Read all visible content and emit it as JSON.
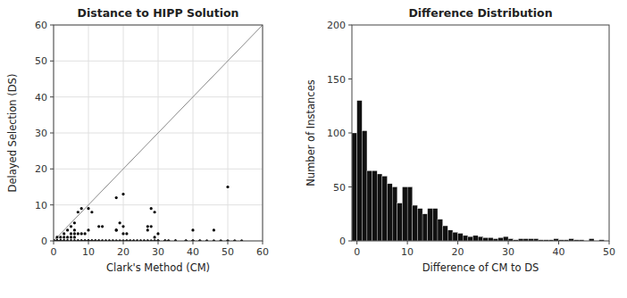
{
  "chart_data": [
    {
      "type": "scatter",
      "title": "Distance to HIPP Solution",
      "x_label": "Clark's Method (CM)",
      "y_label": "Delayed Selection (DS)",
      "x": [
        0,
        0,
        0,
        0,
        0,
        0,
        0,
        0,
        0,
        0,
        1,
        1,
        1,
        1,
        1,
        1,
        1,
        1,
        1,
        2,
        2,
        2,
        2,
        2,
        2,
        2,
        2,
        3,
        3,
        3,
        3,
        3,
        3,
        3,
        3,
        4,
        4,
        4,
        4,
        4,
        4,
        4,
        5,
        5,
        5,
        5,
        5,
        5,
        5,
        5,
        6,
        6,
        6,
        6,
        6,
        6,
        6,
        6,
        7,
        7,
        7,
        7,
        7,
        7,
        8,
        8,
        8,
        8,
        8,
        8,
        9,
        9,
        9,
        9,
        9,
        10,
        10,
        10,
        10,
        10,
        10,
        10,
        11,
        11,
        11,
        11,
        11,
        12,
        12,
        12,
        12,
        13,
        13,
        13,
        13,
        13,
        14,
        14,
        14,
        14,
        15,
        15,
        15,
        16,
        16,
        16,
        17,
        17,
        17,
        18,
        18,
        18,
        18,
        18,
        19,
        19,
        19,
        20,
        20,
        20,
        20,
        20,
        21,
        21,
        21,
        21,
        22,
        22,
        22,
        23,
        23,
        23,
        24,
        24,
        24,
        25,
        25,
        25,
        26,
        26,
        26,
        27,
        27,
        27,
        27,
        27,
        28,
        28,
        28,
        28,
        29,
        29,
        29,
        29,
        29,
        30,
        30,
        30,
        30,
        30,
        32,
        32,
        32,
        32,
        33,
        33,
        33,
        35,
        35,
        35,
        35,
        38,
        38,
        38,
        40,
        40,
        40,
        40,
        42,
        42,
        42,
        44,
        44,
        46,
        46,
        46,
        48,
        48,
        50,
        50,
        50,
        52,
        52,
        54,
        54
      ],
      "values": [
        0,
        0,
        0,
        0,
        0,
        0,
        0,
        0,
        0,
        0,
        0,
        0,
        0,
        0,
        1,
        0,
        0,
        0,
        0,
        0,
        0,
        0,
        0,
        1,
        0,
        0,
        0,
        0,
        0,
        0,
        1,
        0,
        2,
        0,
        0,
        0,
        0,
        1,
        0,
        0,
        0,
        3,
        0,
        0,
        1,
        0,
        2,
        0,
        0,
        4,
        0,
        0,
        1,
        0,
        2,
        0,
        5,
        3,
        0,
        0,
        2,
        0,
        8,
        0,
        0,
        0,
        9,
        0,
        2,
        0,
        0,
        0,
        2,
        0,
        0,
        0,
        0,
        0,
        3,
        0,
        9,
        0,
        0,
        0,
        0,
        8,
        0,
        0,
        0,
        0,
        0,
        0,
        0,
        0,
        0,
        4,
        0,
        0,
        0,
        4,
        0,
        0,
        0,
        0,
        0,
        0,
        0,
        0,
        0,
        0,
        0,
        3,
        3,
        12,
        0,
        0,
        5,
        0,
        0,
        2,
        4,
        13,
        0,
        0,
        0,
        2,
        0,
        0,
        0,
        0,
        0,
        0,
        0,
        0,
        0,
        0,
        0,
        0,
        0,
        0,
        0,
        0,
        0,
        0,
        3,
        4,
        0,
        0,
        9,
        4,
        0,
        0,
        0,
        8,
        1,
        0,
        0,
        0,
        0,
        2,
        0,
        0,
        0,
        0,
        0,
        0,
        0,
        0,
        0,
        0,
        0,
        0,
        0,
        0,
        0,
        0,
        0,
        3,
        0,
        0,
        0,
        0,
        0,
        0,
        0,
        3,
        0,
        0,
        0,
        0,
        15,
        0,
        0,
        0,
        0
      ],
      "color": "#000000",
      "xlim": [
        0,
        60
      ],
      "ylim": [
        0,
        60
      ],
      "xticks": [
        0,
        10,
        20,
        30,
        40,
        50,
        60
      ],
      "yticks": [
        0,
        10,
        20,
        30,
        40,
        50,
        60
      ],
      "grid": true
    },
    {
      "type": "histogram",
      "title": "Difference Distribution",
      "x_label": "Difference of CM to DS",
      "y_label": "Number of Instances",
      "bins": [
        -1,
        0,
        1,
        2,
        3,
        4,
        5,
        6,
        7,
        8,
        9,
        10,
        11,
        12,
        13,
        14,
        15,
        16,
        17,
        18,
        19,
        20,
        21,
        22,
        23,
        24,
        25,
        26,
        27,
        28,
        29,
        30,
        31,
        32,
        33,
        34,
        35,
        36,
        37,
        38,
        39,
        40,
        41,
        42,
        43,
        44,
        45,
        46,
        47,
        48,
        49
      ],
      "values": [
        100,
        130,
        102,
        65,
        65,
        62,
        60,
        53,
        50,
        35,
        50,
        50,
        33,
        30,
        25,
        30,
        30,
        20,
        14,
        10,
        8,
        7,
        5,
        4,
        5,
        4,
        3,
        3,
        2,
        3,
        4,
        2,
        1,
        2,
        2,
        2,
        2,
        1,
        1,
        1,
        2,
        1,
        1,
        2,
        1,
        1,
        0,
        2,
        0,
        1
      ],
      "color": "#111111",
      "xlim": [
        -1,
        50
      ],
      "ylim": [
        0,
        200
      ],
      "xticks": [
        0,
        10,
        20,
        30,
        40,
        50
      ],
      "yticks": [
        0,
        50,
        100,
        150,
        200
      ],
      "grid": false
    }
  ]
}
